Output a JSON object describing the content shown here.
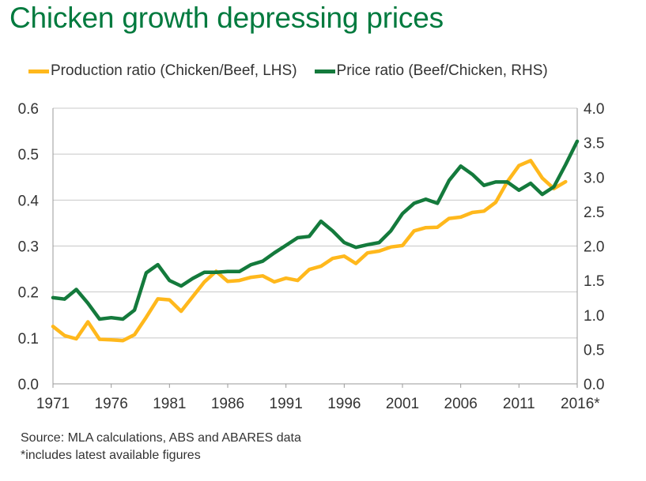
{
  "title": "Chicken growth depressing prices",
  "colors": {
    "title": "#007a3e",
    "production": "#ffb81c",
    "price": "#147a3c",
    "grid": "#c8c8c8",
    "text": "#333333"
  },
  "legend": {
    "production_label": "Production ratio (Chicken/Beef, LHS)",
    "price_label": "Price ratio (Beef/Chicken, RHS)"
  },
  "source": {
    "line1": "Source: MLA calculations, ABS and ABARES data",
    "line2": "*includes latest available figures"
  },
  "chart_data": {
    "type": "line",
    "title": "Chicken growth depressing prices",
    "x_range": [
      1971,
      2016
    ],
    "x_ticks": [
      1971,
      1976,
      1981,
      1986,
      1991,
      1996,
      2001,
      2006,
      2011,
      2016
    ],
    "x_tick_labels": [
      "1971",
      "1976",
      "1981",
      "1986",
      "1991",
      "1996",
      "2001",
      "2006",
      "2011",
      "2016*"
    ],
    "y_left": {
      "range": [
        0.0,
        0.6
      ],
      "ticks": [
        "0.0",
        "0.1",
        "0.2",
        "0.3",
        "0.4",
        "0.5",
        "0.6"
      ]
    },
    "y_right": {
      "range": [
        0.0,
        4.0
      ],
      "ticks": [
        "0.0",
        "0.5",
        "1.0",
        "1.5",
        "2.0",
        "2.5",
        "3.0",
        "3.5",
        "4.0"
      ]
    },
    "grid": true,
    "legend_position": "top",
    "series": [
      {
        "name": "Production ratio (Chicken/Beef, LHS)",
        "axis": "left",
        "color": "#ffb81c",
        "x": [
          1971,
          1972,
          1973,
          1974,
          1975,
          1976,
          1977,
          1978,
          1979,
          1980,
          1981,
          1982,
          1983,
          1984,
          1985,
          1986,
          1987,
          1988,
          1989,
          1990,
          1991,
          1992,
          1993,
          1994,
          1995,
          1996,
          1997,
          1998,
          1999,
          2000,
          2001,
          2002,
          2003,
          2004,
          2005,
          2006,
          2007,
          2008,
          2009,
          2010,
          2011,
          2012,
          2013,
          2014,
          2015
        ],
        "values": [
          0.125,
          0.105,
          0.098,
          0.135,
          0.097,
          0.096,
          0.094,
          0.107,
          0.145,
          0.185,
          0.183,
          0.158,
          0.19,
          0.222,
          0.245,
          0.223,
          0.225,
          0.232,
          0.235,
          0.222,
          0.23,
          0.225,
          0.249,
          0.256,
          0.273,
          0.278,
          0.262,
          0.285,
          0.289,
          0.298,
          0.301,
          0.333,
          0.34,
          0.341,
          0.36,
          0.363,
          0.373,
          0.376,
          0.395,
          0.44,
          0.475,
          0.486,
          0.448,
          0.425,
          0.44
        ]
      },
      {
        "name": "Price ratio (Beef/Chicken, RHS)",
        "axis": "right",
        "color": "#147a3c",
        "x": [
          1971,
          1972,
          1973,
          1974,
          1975,
          1976,
          1977,
          1978,
          1979,
          1980,
          1981,
          1982,
          1983,
          1984,
          1985,
          1986,
          1987,
          1988,
          1989,
          1990,
          1991,
          1992,
          1993,
          1994,
          1995,
          1996,
          1997,
          1998,
          1999,
          2000,
          2001,
          2002,
          2003,
          2004,
          2005,
          2006,
          2007,
          2008,
          2009,
          2010,
          2011,
          2012,
          2013,
          2014,
          2015,
          2016
        ],
        "values": [
          1.25,
          1.23,
          1.37,
          1.17,
          0.94,
          0.96,
          0.94,
          1.07,
          1.61,
          1.73,
          1.5,
          1.42,
          1.53,
          1.62,
          1.62,
          1.63,
          1.63,
          1.73,
          1.78,
          1.9,
          2.01,
          2.12,
          2.14,
          2.36,
          2.22,
          2.05,
          1.98,
          2.02,
          2.05,
          2.22,
          2.47,
          2.62,
          2.68,
          2.62,
          2.95,
          3.16,
          3.04,
          2.88,
          2.93,
          2.93,
          2.81,
          2.91,
          2.75,
          2.86,
          3.18,
          3.52
        ]
      }
    ]
  }
}
